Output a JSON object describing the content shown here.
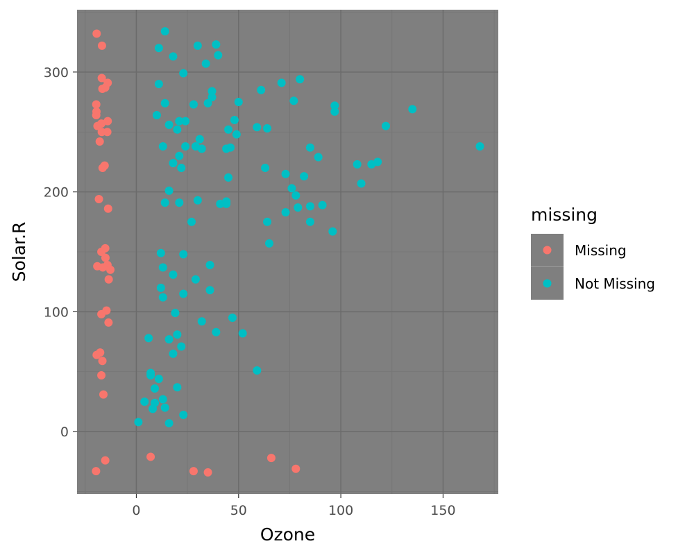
{
  "chart_data": {
    "type": "scatter",
    "xlabel": "Ozone",
    "ylabel": "Solar.R",
    "xlim": [
      -29,
      177
    ],
    "ylim": [
      -52,
      352
    ],
    "xticks": [
      0,
      50,
      100,
      150
    ],
    "yticks": [
      0,
      100,
      200,
      300
    ],
    "grid": true,
    "legend": {
      "title": "missing",
      "position": "right"
    },
    "colors": {
      "panel": "#7f7f7f",
      "grid_major": "#6b6b6b",
      "grid_minor": "#757575"
    },
    "series": [
      {
        "name": "Missing",
        "color": "#f8766d",
        "points": [
          [
            -19.4,
            332
          ],
          [
            -16.8,
            322
          ],
          [
            -16.9,
            295
          ],
          [
            -14.0,
            291
          ],
          [
            -16.6,
            286
          ],
          [
            -15.2,
            287
          ],
          [
            -19.6,
            273
          ],
          [
            -19.5,
            267
          ],
          [
            -19.6,
            264
          ],
          [
            -14.0,
            259
          ],
          [
            -17.1,
            257
          ],
          [
            -19.0,
            255
          ],
          [
            -16.9,
            250
          ],
          [
            -14.2,
            250
          ],
          [
            -17.9,
            242
          ],
          [
            -15.5,
            222
          ],
          [
            -16.5,
            220
          ],
          [
            -18.3,
            194
          ],
          [
            -13.8,
            186
          ],
          [
            -15.2,
            153
          ],
          [
            -17.1,
            150
          ],
          [
            -15.1,
            145
          ],
          [
            -14.1,
            139
          ],
          [
            -19.1,
            138
          ],
          [
            -16.4,
            137
          ],
          [
            -12.7,
            135
          ],
          [
            -13.5,
            127
          ],
          [
            -14.6,
            101
          ],
          [
            -17.1,
            98
          ],
          [
            -13.6,
            91
          ],
          [
            -17.7,
            66
          ],
          [
            -19.4,
            64
          ],
          [
            -16.6,
            59
          ],
          [
            -17.1,
            47
          ],
          [
            -16.1,
            31
          ],
          [
            -15.2,
            -24
          ],
          [
            -19.7,
            -33
          ],
          [
            7,
            -21
          ],
          [
            28,
            -33
          ],
          [
            35,
            -34
          ],
          [
            66,
            -22
          ],
          [
            78,
            -31
          ]
        ]
      },
      {
        "name": "Not Missing",
        "color": "#00bfc4",
        "points": [
          [
            14,
            334
          ],
          [
            11,
            320
          ],
          [
            30,
            322
          ],
          [
            39,
            323
          ],
          [
            18,
            313
          ],
          [
            40,
            314
          ],
          [
            34,
            307
          ],
          [
            23,
            299
          ],
          [
            11,
            290
          ],
          [
            71,
            291
          ],
          [
            80,
            294
          ],
          [
            61,
            285
          ],
          [
            37,
            284
          ],
          [
            37,
            279
          ],
          [
            14,
            274
          ],
          [
            35,
            274
          ],
          [
            28,
            273
          ],
          [
            50,
            275
          ],
          [
            77,
            276
          ],
          [
            97,
            272
          ],
          [
            97,
            267
          ],
          [
            135,
            269
          ],
          [
            10,
            264
          ],
          [
            48,
            260
          ],
          [
            21,
            259
          ],
          [
            24,
            259
          ],
          [
            16,
            256
          ],
          [
            20,
            252
          ],
          [
            45,
            252
          ],
          [
            59,
            254
          ],
          [
            64,
            253
          ],
          [
            122,
            255
          ],
          [
            49,
            248
          ],
          [
            31,
            244
          ],
          [
            13,
            238
          ],
          [
            24,
            238
          ],
          [
            29,
            238
          ],
          [
            32,
            236
          ],
          [
            44,
            236
          ],
          [
            46,
            237
          ],
          [
            85,
            237
          ],
          [
            168,
            238
          ],
          [
            89,
            229
          ],
          [
            21,
            230
          ],
          [
            18,
            224
          ],
          [
            22,
            220
          ],
          [
            63,
            220
          ],
          [
            108,
            223
          ],
          [
            115,
            223
          ],
          [
            118,
            225
          ],
          [
            45,
            212
          ],
          [
            73,
            215
          ],
          [
            82,
            213
          ],
          [
            110,
            207
          ],
          [
            16,
            201
          ],
          [
            76,
            203
          ],
          [
            78,
            197
          ],
          [
            14,
            191
          ],
          [
            21,
            191
          ],
          [
            30,
            193
          ],
          [
            41,
            190
          ],
          [
            44,
            192
          ],
          [
            44,
            190
          ],
          [
            79,
            187
          ],
          [
            85,
            188
          ],
          [
            91,
            189
          ],
          [
            73,
            183
          ],
          [
            27,
            175
          ],
          [
            64,
            175
          ],
          [
            85,
            175
          ],
          [
            96,
            167
          ],
          [
            65,
            157
          ],
          [
            12,
            149
          ],
          [
            23,
            148
          ],
          [
            36,
            139
          ],
          [
            13,
            137
          ],
          [
            18,
            131
          ],
          [
            29,
            127
          ],
          [
            12,
            120
          ],
          [
            36,
            118
          ],
          [
            23,
            115
          ],
          [
            13,
            112
          ],
          [
            19,
            99
          ],
          [
            47,
            95
          ],
          [
            32,
            92
          ],
          [
            39,
            83
          ],
          [
            52,
            82
          ],
          [
            20,
            81
          ],
          [
            16,
            77
          ],
          [
            6,
            78
          ],
          [
            22,
            71
          ],
          [
            18,
            65
          ],
          [
            59,
            51
          ],
          [
            7,
            49
          ],
          [
            7,
            47
          ],
          [
            11,
            44
          ],
          [
            9,
            36
          ],
          [
            20,
            37
          ],
          [
            13,
            27
          ],
          [
            4,
            25
          ],
          [
            9,
            24
          ],
          [
            14,
            20
          ],
          [
            8,
            19
          ],
          [
            23,
            14
          ],
          [
            1,
            8
          ],
          [
            16,
            7
          ]
        ]
      }
    ]
  }
}
